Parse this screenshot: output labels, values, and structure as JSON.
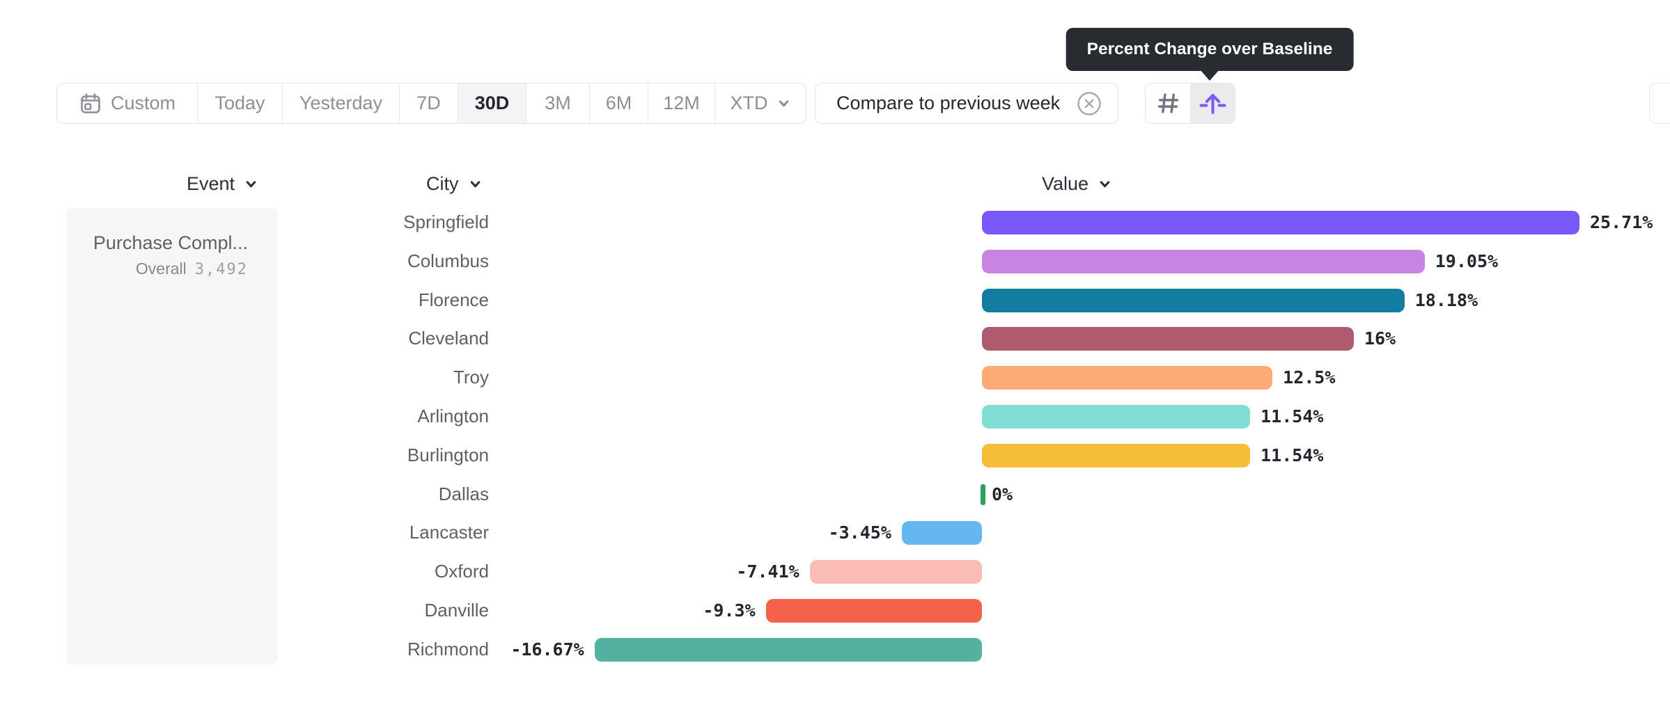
{
  "tooltip": {
    "text": "Percent Change over Baseline"
  },
  "toolbar": {
    "date_ranges": [
      {
        "label": "Custom",
        "icon": "calendar-icon",
        "selected": false
      },
      {
        "label": "Today",
        "selected": false
      },
      {
        "label": "Yesterday",
        "selected": false
      },
      {
        "label": "7D",
        "selected": false
      },
      {
        "label": "30D",
        "selected": true
      },
      {
        "label": "3M",
        "selected": false
      },
      {
        "label": "6M",
        "selected": false
      },
      {
        "label": "12M",
        "selected": false
      },
      {
        "label": "XTD",
        "selected": false,
        "icon": "chevron-down-icon"
      }
    ],
    "compare_chip": {
      "label": "Compare to previous week",
      "icon": "remove-circle-icon"
    },
    "view_toggles": [
      {
        "icon": "grid-icon",
        "active": false
      },
      {
        "icon": "change-over-baseline-icon",
        "active": true
      }
    ]
  },
  "columns": {
    "event": "Event",
    "city": "City",
    "value": "Value"
  },
  "event_panel": {
    "event_name": "Purchase Compl...",
    "overall_label": "Overall",
    "overall_value": "3,492"
  },
  "chart_data": {
    "type": "bar",
    "orientation": "horizontal",
    "unit": "percent",
    "title": "Percent Change over Baseline",
    "baseline": 0,
    "xlim": [
      -16.67,
      25.71
    ],
    "grid": false,
    "categories": [
      "Springfield",
      "Columbus",
      "Florence",
      "Cleveland",
      "Troy",
      "Arlington",
      "Burlington",
      "Dallas",
      "Lancaster",
      "Oxford",
      "Danville",
      "Richmond"
    ],
    "values": [
      25.71,
      19.05,
      18.18,
      16,
      12.5,
      11.54,
      11.54,
      0,
      -3.45,
      -7.41,
      -9.3,
      -16.67
    ],
    "labels": [
      "25.71%",
      "19.05%",
      "18.18%",
      "16%",
      "12.5%",
      "11.54%",
      "11.54%",
      "0%",
      "-3.45%",
      "-7.41%",
      "-9.3%",
      "-16.67%"
    ],
    "colors": [
      "#7957fa",
      "#c983e0",
      "#127ca1",
      "#b05a70",
      "#fcab76",
      "#80ded5",
      "#f6bd39",
      "#2aa05c",
      "#66b6f2",
      "#fabcb4",
      "#f5614b",
      "#53b1a2"
    ]
  },
  "theme": {
    "accent_purple": "#7b5bf7",
    "tooltip_bg": "#282b30",
    "selected_segment_bg": "#f4f4f6",
    "border": "#e4e5e7",
    "text_dark": "#23262d",
    "text_gray": "#8b9097",
    "axis_label_gray": "#5d6166"
  }
}
